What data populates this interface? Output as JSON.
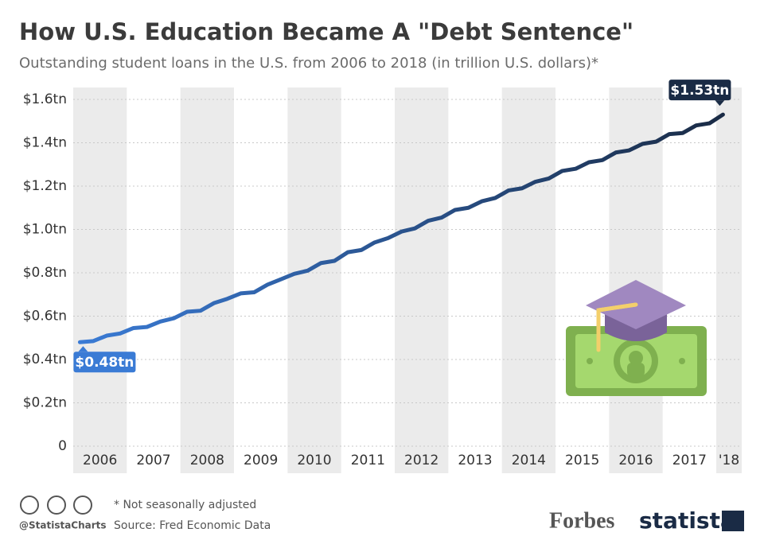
{
  "chart_data": {
    "type": "line",
    "title": "How U.S. Education Became A \"Debt Sentence\"",
    "subtitle": "Outstanding student loans in the U.S. from 2006 to 2018 (in trillion U.S. dollars)*",
    "categories": [
      "2006",
      null,
      null,
      null,
      "2007",
      null,
      null,
      null,
      "2008",
      null,
      null,
      null,
      "2009",
      null,
      null,
      null,
      "2010",
      null,
      null,
      null,
      "2011",
      null,
      null,
      null,
      "2012",
      null,
      null,
      null,
      "2013",
      null,
      null,
      null,
      "2014",
      null,
      null,
      null,
      "2015",
      null,
      null,
      null,
      "2016",
      null,
      null,
      null,
      "2017",
      null,
      null,
      null,
      "'18"
    ],
    "series": [
      {
        "name": "Outstanding student loans",
        "line_gradient": [
          "#3a7bd5",
          "#1a2b45"
        ],
        "values": [
          0.48,
          0.485,
          0.51,
          0.52,
          0.545,
          0.55,
          0.575,
          0.59,
          0.62,
          0.625,
          0.66,
          0.68,
          0.705,
          0.71,
          0.745,
          0.77,
          0.795,
          0.81,
          0.845,
          0.855,
          0.895,
          0.905,
          0.94,
          0.96,
          0.99,
          1.005,
          1.04,
          1.055,
          1.09,
          1.1,
          1.13,
          1.145,
          1.18,
          1.19,
          1.22,
          1.235,
          1.27,
          1.28,
          1.31,
          1.32,
          1.355,
          1.365,
          1.395,
          1.405,
          1.44,
          1.445,
          1.48,
          1.49,
          1.53
        ],
        "value_labels": [
          "$0.48tn",
          null,
          null,
          null,
          null,
          null,
          null,
          null,
          null,
          null,
          null,
          null,
          null,
          null,
          null,
          null,
          null,
          null,
          null,
          null,
          null,
          null,
          null,
          null,
          null,
          null,
          null,
          null,
          null,
          null,
          null,
          null,
          null,
          null,
          null,
          null,
          null,
          null,
          null,
          null,
          null,
          null,
          null,
          null,
          null,
          null,
          null,
          null,
          "$1.53tn"
        ]
      }
    ],
    "ylim": [
      0,
      1.6
    ],
    "yticks": [
      0,
      {
        "value": 0.2,
        "label": "$0.2tn"
      },
      {
        "value": 0.4,
        "label": "$0.4tn"
      },
      {
        "value": 0.6,
        "label": "$0.6tn"
      },
      {
        "value": 0.8,
        "label": "$0.8tn"
      },
      {
        "value": 1.0,
        "label": "$1.0tn"
      },
      {
        "value": 1.2,
        "label": "$1.2tn"
      },
      {
        "value": 1.4,
        "label": "$1.4tn"
      },
      {
        "value": 1.6,
        "label": "$1.6tn"
      }
    ],
    "grid": true
  },
  "footer": {
    "note": "* Not seasonally adjusted",
    "source": "Source: Fred Economic Data",
    "handle": "@StatistaCharts",
    "partner": "Forbes",
    "brand": "statista"
  }
}
